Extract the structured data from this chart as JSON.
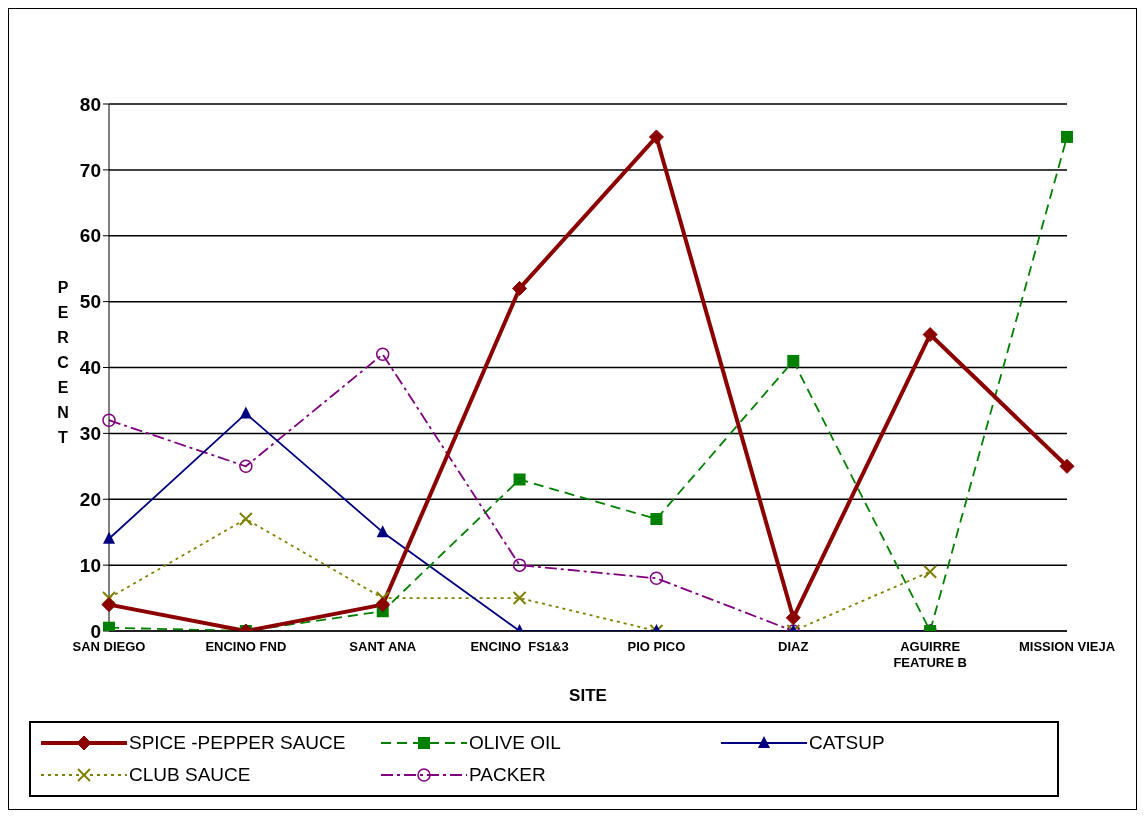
{
  "chart_data": {
    "type": "line",
    "xlabel": "SITE",
    "ylabel": "PERCENT",
    "categories": [
      "SAN DIEGO",
      "ENCINO FND",
      "SANT ANA",
      "ENCINO  FS1&3",
      "PIO PICO",
      "DIAZ",
      "AGUIRRE FEATURE B",
      "MISSION VIEJA"
    ],
    "series": [
      {
        "name": "SPICE -PEPPER SAUCE",
        "color": "#8b0000",
        "marker": "diamond",
        "line_style": "solid",
        "values": [
          4,
          0,
          4,
          52,
          75,
          2,
          45,
          25
        ]
      },
      {
        "name": "OLIVE OIL",
        "color": "#008000",
        "marker": "square",
        "line_style": "dashed",
        "values": [
          0.5,
          0,
          3,
          23,
          17,
          41,
          0,
          75
        ]
      },
      {
        "name": "CATSUP",
        "color": "#000080",
        "marker": "triangle",
        "line_style": "solid",
        "values": [
          14,
          33,
          15,
          0,
          0,
          0,
          0,
          null
        ]
      },
      {
        "name": "CLUB SAUCE",
        "color": "#808000",
        "marker": "cross",
        "line_style": "dotted",
        "values": [
          5,
          17,
          5,
          5,
          0,
          0,
          9,
          null
        ]
      },
      {
        "name": "PACKER",
        "color": "#800080",
        "marker": "circle",
        "line_style": "dashdot",
        "values": [
          32,
          25,
          42,
          10,
          8,
          0,
          0,
          null
        ]
      }
    ],
    "ylim": [
      0,
      80
    ],
    "yticks": [
      0,
      10,
      20,
      30,
      40,
      50,
      60,
      70,
      80
    ],
    "grid": "y",
    "legend": "bottom"
  }
}
